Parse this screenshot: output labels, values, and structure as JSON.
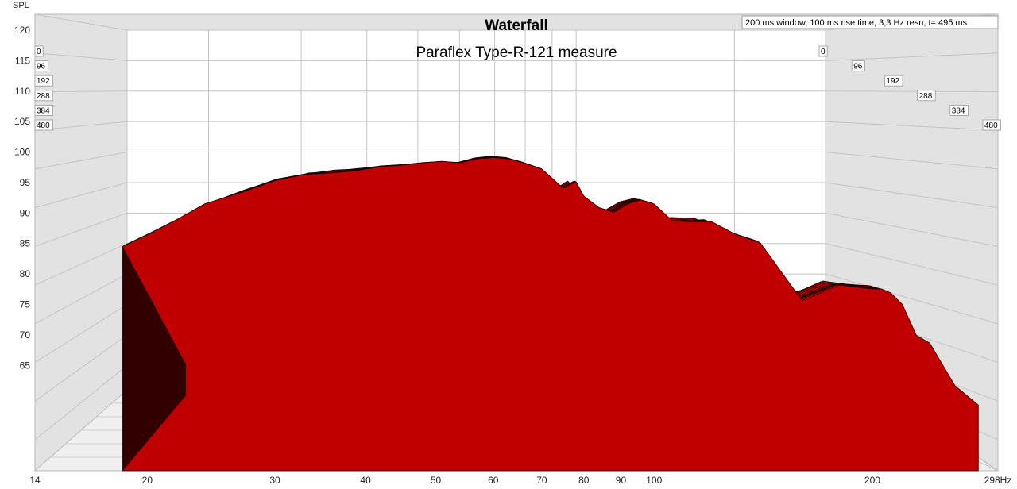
{
  "chart_data": {
    "type": "waterfall",
    "title": "Waterfall",
    "subtitle": "Paraflex Type-R-121 measure",
    "info": "200 ms window, 100 ms rise time,  3,3 Hz resn, t= 495 ms",
    "ylabel": "SPL",
    "xlabel_unit": "Hz",
    "x_scale": "log",
    "xlim": [
      14,
      298
    ],
    "ylim": [
      61,
      120
    ],
    "x_ticks": [
      "14",
      "20",
      "30",
      "40",
      "50",
      "60",
      "70",
      "80",
      "90",
      "100",
      "200",
      "298Hz"
    ],
    "y_ticks": [
      "120",
      "115",
      "110",
      "105",
      "100",
      "95",
      "90",
      "85",
      "80",
      "75",
      "70",
      "65"
    ],
    "time_labels_left": [
      "0",
      "96",
      "192",
      "288",
      "384",
      "480"
    ],
    "time_labels_right": [
      "0",
      "96",
      "192",
      "288",
      "384",
      "480"
    ],
    "time_ms": [
      0,
      96,
      192,
      288,
      384,
      480
    ],
    "fill_color": "#c00000",
    "edge_color": "#1a0000",
    "background_color": "#e3e3e3",
    "grid": true,
    "front_slice": {
      "freq_hz": [
        18.5,
        20,
        22,
        24,
        27,
        30,
        33,
        36,
        39,
        42,
        45,
        48,
        51,
        54,
        57,
        60,
        63,
        66,
        70,
        75,
        78,
        80,
        84,
        88,
        92,
        96,
        100,
        106,
        112,
        120,
        130,
        140,
        160,
        180,
        200,
        206,
        212,
        220,
        230,
        240,
        260,
        280
      ],
      "spl_db": [
        90,
        91.5,
        93.5,
        95.5,
        97,
        98.5,
        99.3,
        99.5,
        99.8,
        100.3,
        100.5,
        100.8,
        101,
        100.8,
        101.3,
        101.5,
        101.3,
        100.8,
        100,
        97.5,
        98.4,
        96.5,
        95,
        94.4,
        95.5,
        96,
        95.5,
        93.3,
        93.2,
        93.2,
        91.5,
        90.5,
        83,
        85,
        84.5,
        84.5,
        84,
        82.5,
        78.5,
        77.5,
        72,
        69.5
      ]
    }
  }
}
